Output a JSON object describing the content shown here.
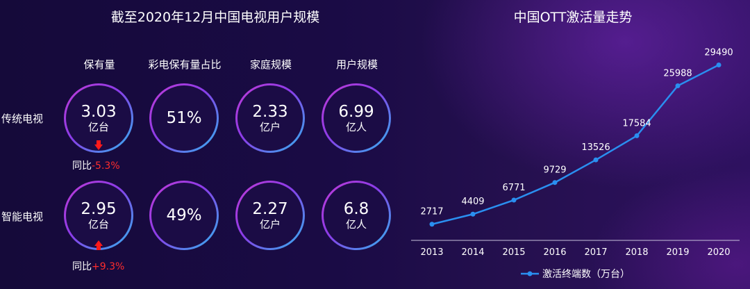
{
  "left_panel": {
    "title": "截至2020年12月中国电视用户规模",
    "columns": [
      "保有量",
      "彩电保有量占比",
      "家庭规模",
      "用户规模"
    ],
    "rows": [
      {
        "label": "传统电视",
        "cells": [
          {
            "value": "3.03",
            "unit": "亿台"
          },
          {
            "value": "51%",
            "unit": ""
          },
          {
            "value": "2.33",
            "unit": "亿户"
          },
          {
            "value": "6.99",
            "unit": "亿人"
          }
        ],
        "yoy_label": "同比",
        "yoy_value": "-5.3%",
        "trend": "down"
      },
      {
        "label": "智能电视",
        "cells": [
          {
            "value": "2.95",
            "unit": "亿台"
          },
          {
            "value": "49%",
            "unit": ""
          },
          {
            "value": "2.27",
            "unit": "亿户"
          },
          {
            "value": "6.8",
            "unit": "亿人"
          }
        ],
        "yoy_label": "同比",
        "yoy_value": "+9.3%",
        "trend": "up"
      }
    ],
    "colors": {
      "ring_start": "#c23bd6",
      "ring_end": "#2fb8f0",
      "arrow": "#ff1a1a",
      "yoy_value": "#ff2d2d"
    }
  },
  "chart_data": {
    "type": "line",
    "title": "中国OTT激活量走势",
    "categories": [
      "2013",
      "2014",
      "2015",
      "2016",
      "2017",
      "2018",
      "2019",
      "2020"
    ],
    "series": [
      {
        "name": "激活终端数（万台）",
        "values": [
          2717,
          4409,
          6771,
          9729,
          13526,
          17584,
          25988,
          29490
        ]
      }
    ],
    "ylim": [
      0,
      32000
    ],
    "grid": false,
    "legend_position": "bottom",
    "line_color": "#2a8ff0"
  }
}
